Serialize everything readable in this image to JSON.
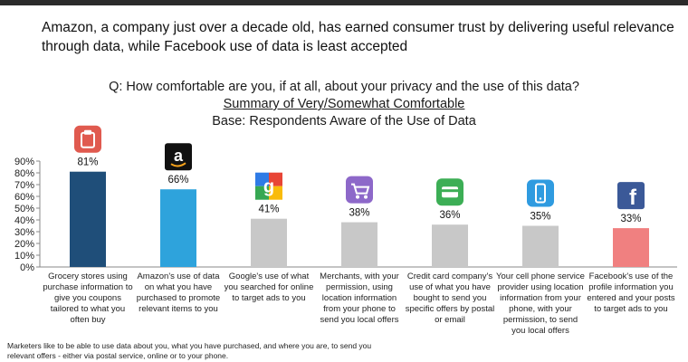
{
  "header": {
    "headline": "Amazon, a company just over a decade old, has earned consumer trust by delivering useful relevance through data, while Facebook use of data is least accepted",
    "question": "Q: How comfortable are you, if at all, about your privacy and the use of this data?",
    "summary": "Summary of Very/Somewhat Comfortable",
    "base": "Base: Respondents Aware of the Use of Data"
  },
  "chart_data": {
    "type": "bar",
    "categories": [
      "Grocery stores using purchase information to give you coupons tailored to what you often buy",
      "Amazon's use of data on what you have purchased to promote relevant items to you",
      "Google's use of what you searched for online to target ads to you",
      "Merchants, with your permission, using location information from your phone to send you local offers",
      "Credit card company's use of what you have bought to send you specific offers by postal or email",
      "Your cell phone service provider using location information from your phone, with your permission, to send you local offers",
      "Facebook's use of the profile information you entered and your posts to target ads to you"
    ],
    "values": [
      81,
      66,
      41,
      38,
      36,
      35,
      33
    ],
    "value_labels": [
      "81%",
      "66%",
      "41%",
      "38%",
      "36%",
      "35%",
      "33%"
    ],
    "bar_colors": [
      "#1f4e79",
      "#2ea3dc",
      "#c8c8c8",
      "#c8c8c8",
      "#c8c8c8",
      "#c8c8c8",
      "#f08080"
    ],
    "icons": [
      "grocery-icon",
      "amazon-icon",
      "google-icon",
      "shopping-cart-icon",
      "credit-card-icon",
      "cell-phone-icon",
      "facebook-icon"
    ],
    "ylim": [
      0,
      90
    ],
    "yticks": [
      "0%",
      "10%",
      "20%",
      "30%",
      "40%",
      "50%",
      "60%",
      "70%",
      "80%",
      "90%"
    ],
    "grid": false
  },
  "footnote": "Marketers like to be able to use data about you, what you have purchased, and where you are, to send you relevant offers - either via postal service, online or to your phone."
}
